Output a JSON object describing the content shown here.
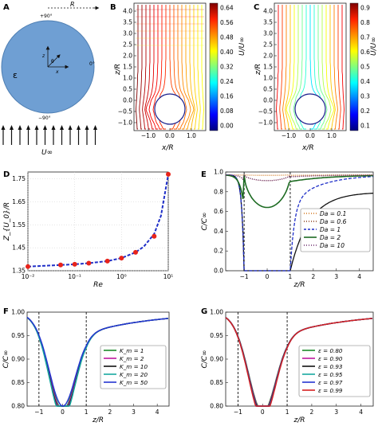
{
  "figure": {
    "panels": {
      "A": {
        "letter": "A",
        "radius_label": "R",
        "angle_top": "+90°",
        "angle_right": "0°",
        "angle_bottom": "−90°",
        "theta": "θ",
        "x_axis": "x",
        "z_axis": "z",
        "epsilon": "ε",
        "flow_label": "U∞",
        "colors": {
          "disc": "#6f9fd3",
          "disc_edge": "#4f7fb3"
        }
      },
      "B": {
        "letter": "B",
        "xlabel": "x/R",
        "ylabel": "z/R",
        "xticks": [
          "−1.0",
          "0.0",
          "1.0"
        ],
        "yticks": [
          "4.0",
          "3.5",
          "3.0",
          "2.5",
          "2.0",
          "1.5",
          "1.0",
          "0.5",
          "0.0",
          "−0.5",
          "−1.0"
        ],
        "colorbar": {
          "label": "U/U∞",
          "ticks": [
            "0.64",
            "0.56",
            "0.48",
            "0.40",
            "0.32",
            "0.24",
            "0.16",
            "0.08",
            "0.00"
          ],
          "range": [
            0,
            0.64
          ]
        }
      },
      "C": {
        "letter": "C",
        "xlabel": "x/R",
        "ylabel": "z/R",
        "xticks": [
          "−1.0",
          "0.0",
          "1.0"
        ],
        "yticks": [
          "4.0",
          "3.5",
          "3.0",
          "2.5",
          "2.0",
          "1.5",
          "1.0",
          "0.5",
          "0.0",
          "−0.5",
          "−1.0"
        ],
        "colorbar": {
          "label": "U/U∞",
          "ticks": [
            "0.9",
            "0.8",
            "0.7",
            "0.6",
            "0.5",
            "0.4",
            "0.3",
            "0.2",
            "0.1"
          ],
          "range": [
            0.1,
            0.95
          ]
        }
      }
    }
  },
  "chart_data": [
    {
      "panel": "D",
      "type": "line",
      "xscale": "log",
      "xlabel": "Re",
      "ylabel": "Z_{U_0}/R",
      "xlim": [
        0.01,
        10
      ],
      "ylim": [
        1.35,
        1.78
      ],
      "xticks": [
        "10⁻²",
        "10⁻¹",
        "10⁰",
        "10¹"
      ],
      "yticks": [
        "1.35",
        "1.45",
        "1.55",
        "1.65",
        "1.75"
      ],
      "grid": true,
      "series": [
        {
          "style": "markers",
          "color": "#e8231a",
          "x": [
            0.01,
            0.05,
            0.1,
            0.2,
            0.5,
            1,
            2,
            5,
            10
          ],
          "y": [
            1.368,
            1.375,
            1.378,
            1.383,
            1.392,
            1.405,
            1.43,
            1.5,
            1.77
          ]
        },
        {
          "style": "dashed",
          "color": "#1f2fc8",
          "x": [
            0.01,
            0.02,
            0.05,
            0.1,
            0.2,
            0.5,
            1,
            2,
            3,
            5,
            7,
            10
          ],
          "y": [
            1.368,
            1.371,
            1.375,
            1.378,
            1.383,
            1.392,
            1.405,
            1.43,
            1.455,
            1.51,
            1.59,
            1.77
          ]
        }
      ]
    },
    {
      "panel": "E",
      "type": "line",
      "xlabel": "z/R",
      "ylabel": "C/C∞",
      "xlim": [
        -1.8,
        4.6
      ],
      "ylim": [
        0,
        1.03
      ],
      "xticks": [
        "−1",
        "0",
        "1",
        "2",
        "3",
        "4"
      ],
      "yticks": [
        "0.0",
        "0.2",
        "0.4",
        "0.6",
        "0.8",
        "1.0"
      ],
      "vlines": [
        -1,
        1
      ],
      "legend": "center-right",
      "series": [
        {
          "name": "Da = 0.1",
          "color": "#d2761c",
          "dip": 0.995,
          "recover": 0.995,
          "style": "dots"
        },
        {
          "name": "Da = 0.6",
          "color": "#8a3d1a",
          "dip": 0.94,
          "recover": 0.98,
          "style": "dots"
        },
        {
          "name": "Da = 1",
          "color": "#1f2fc8",
          "dip": 0.0,
          "recover": 0.7,
          "style": "dashed"
        },
        {
          "name": "Da = 2",
          "color": "#1d6b22",
          "dip": 0.66,
          "recover": 0.93,
          "style": "solid"
        },
        {
          "name": "Da = 10",
          "color": "#6b2a6b",
          "dip": 0.94,
          "recover": 0.98,
          "style": "dots"
        }
      ],
      "line_black": {
        "color": "#111111",
        "dip": 0.0,
        "recover": 0.82
      }
    },
    {
      "panel": "F",
      "type": "line",
      "xlabel": "z/R",
      "ylabel": "C/C∞",
      "xlim": [
        -1.5,
        4.5
      ],
      "ylim": [
        0.8,
        1.0
      ],
      "xticks": [
        "−1",
        "0",
        "1",
        "2",
        "3",
        "4"
      ],
      "yticks": [
        "0.80",
        "0.85",
        "0.90",
        "0.95",
        "1.00"
      ],
      "vlines": [
        -1,
        1
      ],
      "legend": "center-right",
      "series": [
        {
          "name": "K_m = 1",
          "color": "#1d8a2a",
          "min": 0.834
        },
        {
          "name": "K_m = 2",
          "color": "#c0189e",
          "min": 0.829
        },
        {
          "name": "K_m = 10",
          "color": "#111111",
          "min": 0.822
        },
        {
          "name": "K_m = 20",
          "color": "#17a8a0",
          "min": 0.818
        },
        {
          "name": "K_m = 50",
          "color": "#2535d0",
          "min": 0.843
        }
      ]
    },
    {
      "panel": "G",
      "type": "line",
      "xlabel": "z/R",
      "ylabel": "C/C∞",
      "xlim": [
        -1.5,
        4.5
      ],
      "ylim": [
        0.8,
        1.0
      ],
      "xticks": [
        "−1",
        "0",
        "1",
        "2",
        "3",
        "4"
      ],
      "yticks": [
        "0.80",
        "0.85",
        "0.90",
        "0.95",
        "1.00"
      ],
      "vlines": [
        -1,
        1
      ],
      "legend": "center-right",
      "series": [
        {
          "name": "ε = 0.80",
          "color": "#1d8a2a",
          "min": 0.83
        },
        {
          "name": "ε = 0.90",
          "color": "#c0189e",
          "min": 0.827
        },
        {
          "name": "ε = 0.93",
          "color": "#111111",
          "min": 0.823
        },
        {
          "name": "ε = 0.95",
          "color": "#17a8a0",
          "min": 0.82
        },
        {
          "name": "ε = 0.97",
          "color": "#2535d0",
          "min": 0.818
        },
        {
          "name": "ε = 0.99",
          "color": "#d62020",
          "min": 0.816
        }
      ]
    }
  ]
}
